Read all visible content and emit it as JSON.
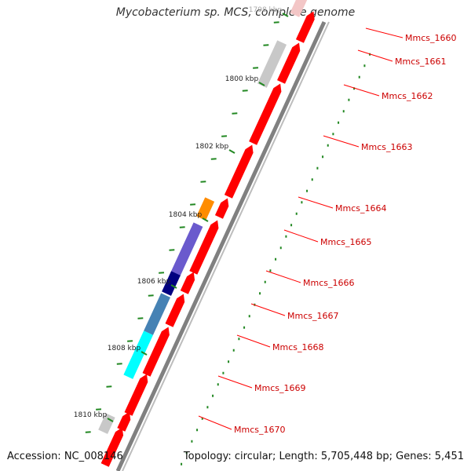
{
  "map": {
    "title": "Mycobacterium sp. MCS, complete genome",
    "accession_text": "Accession: NC_008146",
    "summary_text": "Topology: circular; Length: 5,705,448 bp; Genes: 5,451"
  },
  "ticks": [
    "1798 kbp",
    "1800 kbp",
    "1802 kbp",
    "1804 kbp",
    "1806 kbp",
    "1808 kbp",
    "1810 kbp"
  ],
  "genes": [
    "Mmcs_1660",
    "Mmcs_1661",
    "Mmcs_1662",
    "Mmcs_1663",
    "Mmcs_1664",
    "Mmcs_1665",
    "Mmcs_1666",
    "Mmcs_1667",
    "Mmcs_1668",
    "Mmcs_1669",
    "Mmcs_1670"
  ],
  "colors": {
    "cds": "#ff0000",
    "gene_label": "#cc0000",
    "backbone": "#808080",
    "gc_ticks": "#228822",
    "grey_feature": "#c8c8c8",
    "orange_feature": "#ff8c00",
    "purple_feature": "#6a5acd",
    "navy_feature": "#000080",
    "steelblue_feature": "#4682b4",
    "cyan_feature": "#00ffff"
  }
}
